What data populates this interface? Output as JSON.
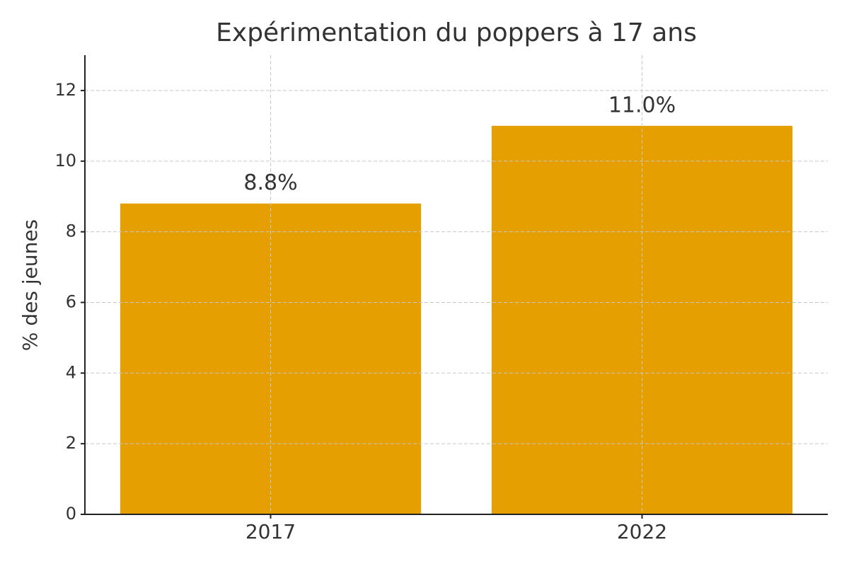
{
  "chart_data": {
    "type": "bar",
    "title": "Expérimentation du poppers à 17 ans",
    "ylabel": "% des jeunes",
    "categories": [
      "2017",
      "2022"
    ],
    "values": [
      8.8,
      11.0
    ],
    "value_labels": [
      "8.8%",
      "11.0%"
    ],
    "color": "#e69f00",
    "ylim": [
      0,
      13
    ],
    "yticks": [
      0,
      2,
      4,
      6,
      8,
      10,
      12
    ],
    "grid": true
  }
}
